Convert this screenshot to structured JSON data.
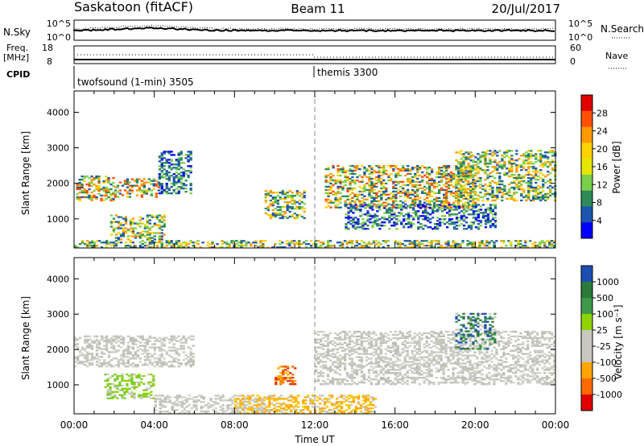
{
  "header": {
    "title": "Saskatoon (fitACF)",
    "beam": "Beam 11",
    "date": "20/Jul/2017"
  },
  "summary": {
    "nsky_label": "N.Sky",
    "nsearch_label": "N.Search",
    "nsky_ticks": [
      "10^5",
      "10^0"
    ],
    "nsearch_ticks": [
      "10^5",
      "10^0"
    ],
    "freq_label": "Freq.",
    "freq_unit": "[MHz]",
    "freq_ticks": [
      "18",
      "8"
    ],
    "nave_label": "Nave",
    "nave_ticks": [
      "60",
      "0"
    ],
    "cpid_label": "CPID",
    "cpid_segments": [
      {
        "label": "twofsound (1-min) 3505",
        "start_hour": 0
      },
      {
        "label": "themis 3300",
        "start_hour": 12
      }
    ]
  },
  "chart_data": [
    {
      "type": "heatmap",
      "parameter": "Power",
      "ylabel": "Slant Range [km]",
      "xlabel": "",
      "x_range_hours": [
        0,
        24
      ],
      "ylim": [
        180,
        4600
      ],
      "y_ticks": [
        "4000",
        "3000",
        "2000",
        "1000"
      ],
      "x_tick_labels": [],
      "colorbar": {
        "title": "Power [dB]",
        "ticks": [
          "28",
          "24",
          "20",
          "16",
          "12",
          "8",
          "4"
        ],
        "colors": [
          "#e00000",
          "#ff5000",
          "#ff9a00",
          "#ffd200",
          "#e6e600",
          "#7ad04a",
          "#2e8b57",
          "#1c56b0",
          "#0000ff"
        ]
      },
      "echo_regions": [
        {
          "t0": 0.1,
          "t1": 2.0,
          "r0": 1500,
          "r1": 2200,
          "level": "high"
        },
        {
          "t0": 2.0,
          "t1": 4.2,
          "r0": 1600,
          "r1": 2100,
          "level": "high"
        },
        {
          "t0": 4.2,
          "t1": 5.8,
          "r0": 1700,
          "r1": 2900,
          "level": "low"
        },
        {
          "t0": 1.8,
          "t1": 4.5,
          "r0": 400,
          "r1": 1100,
          "level": "mid"
        },
        {
          "t0": 0.0,
          "t1": 24.0,
          "r0": 180,
          "r1": 400,
          "level": "mid"
        },
        {
          "t0": 9.5,
          "t1": 11.5,
          "r0": 1000,
          "r1": 1800,
          "level": "mid"
        },
        {
          "t0": 12.5,
          "t1": 20.0,
          "r0": 1300,
          "r1": 2500,
          "level": "high"
        },
        {
          "t0": 13.5,
          "t1": 21.0,
          "r0": 700,
          "r1": 1400,
          "level": "low"
        },
        {
          "t0": 19.0,
          "t1": 24.0,
          "r0": 1500,
          "r1": 2900,
          "level": "mid"
        }
      ]
    },
    {
      "type": "heatmap",
      "parameter": "Velocity",
      "ylabel": "Slant Range [km]",
      "xlabel": "Time UT",
      "x_range_hours": [
        0,
        24
      ],
      "ylim": [
        180,
        4600
      ],
      "y_ticks": [
        "4000",
        "3000",
        "2000",
        "1000"
      ],
      "x_tick_labels": [
        "00:00",
        "04:00",
        "08:00",
        "12:00",
        "16:00",
        "20:00",
        "00:00"
      ],
      "colorbar": {
        "title": "Velocity [m s⁻¹]",
        "ticks": [
          "1000",
          "500",
          "100",
          "25",
          "-25",
          "-100",
          "-500",
          "-1000"
        ],
        "colors": [
          "#1c4fb0",
          "#2c7a3a",
          "#3c9a4a",
          "#8fd400",
          "#c8c8c0",
          "#c8c8c0",
          "#ffa500",
          "#ff6a00",
          "#e00000"
        ]
      },
      "echo_regions": [
        {
          "t0": 0.0,
          "t1": 6.0,
          "r0": 1500,
          "r1": 2400,
          "level": "gray"
        },
        {
          "t0": 1.5,
          "t1": 4.0,
          "r0": 600,
          "r1": 1300,
          "level": "green"
        },
        {
          "t0": 4.0,
          "t1": 9.5,
          "r0": 180,
          "r1": 700,
          "level": "gray"
        },
        {
          "t0": 10.0,
          "t1": 11.0,
          "r0": 1000,
          "r1": 1500,
          "level": "orange"
        },
        {
          "t0": 8.0,
          "t1": 15.0,
          "r0": 180,
          "r1": 700,
          "level": "yellow"
        },
        {
          "t0": 12.0,
          "t1": 24.0,
          "r0": 1000,
          "r1": 2500,
          "level": "gray"
        },
        {
          "t0": 19.0,
          "t1": 21.0,
          "r0": 2000,
          "r1": 3000,
          "level": "darkgreen"
        }
      ]
    }
  ]
}
